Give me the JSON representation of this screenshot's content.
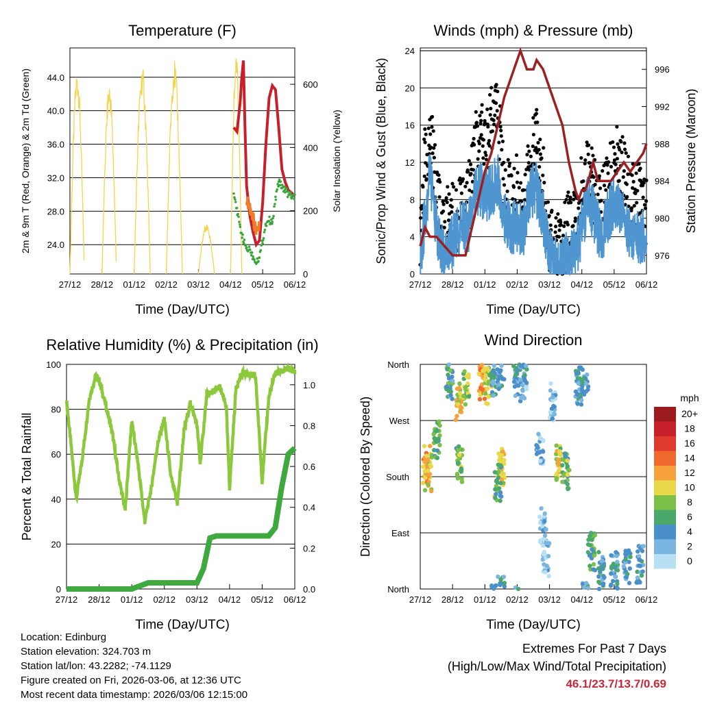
{
  "time_labels": [
    "27/12",
    "28/12",
    "01/12",
    "02/12",
    "03/12",
    "04/12",
    "05/12",
    "06/12"
  ],
  "xlabel": "Time (Day/UTC)",
  "chart_data": [
    {
      "type": "line",
      "id": "temperature",
      "title": "Temperature (F)",
      "xlabel": "Time (Day/UTC)",
      "ylabel": "2m & 9m T (Red, Orange) & 2m Td (Green)",
      "ylabel_right": "Solar Insolation (Yellow)",
      "ylim": [
        20.5,
        47.5
      ],
      "yticks": [
        "24.0",
        "28.0",
        "32.0",
        "36.0",
        "40.0",
        "44.0"
      ],
      "ylim_right": [
        0,
        715
      ],
      "yticks_right": [
        "0",
        "200",
        "400",
        "600"
      ],
      "series": [
        {
          "name": "2m T",
          "color": "#c8202a",
          "x": [
            5.1,
            5.2,
            5.3,
            5.35,
            5.4,
            5.45,
            5.5,
            5.6,
            5.7,
            5.8,
            5.9,
            6.0,
            6.1,
            6.2,
            6.3,
            6.4,
            6.5,
            6.6,
            6.7,
            6.8,
            6.9,
            7.0
          ],
          "values": [
            38.0,
            37.5,
            41.0,
            44.0,
            46.0,
            38.0,
            31.0,
            27.5,
            25.5,
            24.0,
            24.5,
            29.0,
            36.0,
            41.5,
            43.0,
            42.5,
            38.0,
            33.0,
            31.5,
            30.5,
            30.2,
            29.8
          ]
        },
        {
          "name": "9m T",
          "color": "#f07c2a",
          "x": [
            5.5,
            5.6,
            5.7,
            5.8,
            5.9
          ],
          "values": [
            29.0,
            27.5,
            26.5,
            24.5,
            25.5
          ]
        },
        {
          "name": "2m Td",
          "color": "#3ca43c",
          "x": [
            5.1,
            5.2,
            5.3,
            5.4,
            5.5,
            5.6,
            5.7,
            5.8,
            5.9,
            6.0,
            6.1,
            6.2,
            6.3,
            6.4,
            6.5,
            6.6,
            6.7,
            6.8,
            6.9,
            7.0
          ],
          "values": [
            30.5,
            28.0,
            26.0,
            24.5,
            23.5,
            23.5,
            22.5,
            22.0,
            22.5,
            24.5,
            26.5,
            27.0,
            26.5,
            29.5,
            31.5,
            31.0,
            30.5,
            30.0,
            29.8,
            29.6
          ]
        }
      ],
      "solar": {
        "name": "Solar Insolation",
        "color": "#f2d44e",
        "days": [
          {
            "start": 0.0,
            "peak": 0.25,
            "end": 0.45,
            "value": 650
          },
          {
            "start": 1.0,
            "peak": 1.2,
            "end": 1.45,
            "value": 610
          },
          {
            "start": 2.0,
            "peak": 2.25,
            "end": 2.5,
            "value": 660
          },
          {
            "start": 3.0,
            "peak": 3.25,
            "end": 3.5,
            "value": 680
          },
          {
            "start": 4.0,
            "peak": 4.25,
            "end": 4.5,
            "value": 160
          },
          {
            "start": 5.0,
            "peak": 5.05,
            "end": 5.35,
            "value": 715
          }
        ]
      }
    },
    {
      "type": "line",
      "id": "winds",
      "title": "Winds (mph) & Pressure (mb)",
      "xlabel": "Time (Day/UTC)",
      "ylabel": "Sonic/Prop Wind & Gust (Blue, Black)",
      "ylabel_right": "Station Pressure (Maroon)",
      "ylim": [
        0,
        24.3
      ],
      "yticks": [
        "0",
        "4",
        "8",
        "12",
        "16",
        "20",
        "24"
      ],
      "ylim_right": [
        974.0,
        998.3
      ],
      "yticks_right": [
        "976",
        "980",
        "984",
        "988",
        "992",
        "996"
      ],
      "series": [
        {
          "name": "Sonic/Prop Wind",
          "color": "#4f95d0",
          "x": [
            0,
            0.15,
            0.3,
            0.5,
            0.7,
            0.9,
            1.1,
            1.3,
            1.5,
            1.7,
            1.9,
            2.0,
            2.2,
            2.4,
            2.6,
            2.8,
            3.0,
            3.2,
            3.4,
            3.6,
            3.8,
            4.0,
            4.2,
            4.4,
            4.6,
            4.8,
            5.0,
            5.2,
            5.4,
            5.6,
            5.8,
            6.0,
            6.2,
            6.4,
            6.6,
            6.8,
            7.0
          ],
          "values": [
            2,
            6,
            11,
            5,
            2,
            3,
            4,
            5,
            5,
            9,
            9,
            8,
            9,
            10,
            6,
            5,
            5,
            5,
            9,
            9,
            6,
            2,
            1,
            1,
            2,
            2,
            5,
            8,
            6,
            4,
            6,
            8,
            7,
            5,
            4,
            4,
            4
          ]
        },
        {
          "name": "Gust",
          "color": "#000000",
          "x": [
            0,
            0.15,
            0.3,
            0.5,
            0.7,
            0.9,
            1.1,
            1.3,
            1.5,
            1.7,
            1.9,
            2.0,
            2.2,
            2.4,
            2.6,
            2.8,
            3.0,
            3.2,
            3.4,
            3.6,
            3.8,
            4.0,
            4.2,
            4.4,
            4.6,
            4.8,
            5.0,
            5.2,
            5.4,
            5.6,
            5.8,
            6.0,
            6.2,
            6.4,
            6.6,
            6.8,
            7.0
          ],
          "values": [
            5,
            12,
            16,
            9,
            4,
            6,
            6,
            7,
            8,
            14,
            15,
            13,
            17,
            17,
            9,
            8,
            9,
            8,
            13,
            14,
            10,
            4,
            3,
            3,
            5,
            5,
            9,
            12,
            9,
            7,
            9,
            12,
            12,
            9,
            8,
            8,
            7
          ]
        },
        {
          "name": "Station Pressure",
          "color": "#9c1f22",
          "x": [
            0,
            0.15,
            0.3,
            0.5,
            0.75,
            1.0,
            1.2,
            1.4,
            1.6,
            1.8,
            2.0,
            2.2,
            2.4,
            2.6,
            2.8,
            3.0,
            3.1,
            3.2,
            3.3,
            3.4,
            3.5,
            3.6,
            3.8,
            4.0,
            4.2,
            4.4,
            4.6,
            4.8,
            4.9,
            5.0,
            5.1,
            5.2,
            5.35,
            5.5,
            5.7,
            5.9,
            6.1,
            6.3,
            6.5,
            6.7,
            6.9,
            7.0
          ],
          "values": [
            977,
            979,
            978,
            978,
            977,
            976,
            976,
            976,
            979,
            982,
            985,
            987,
            990,
            993,
            995,
            997,
            998,
            997,
            996,
            996,
            996,
            997,
            996,
            994,
            992,
            990,
            986,
            983,
            982,
            983,
            983,
            984,
            986,
            984,
            984,
            984,
            985,
            986,
            985,
            986,
            987,
            988
          ]
        }
      ]
    },
    {
      "type": "line",
      "id": "humidity",
      "title": "Relative Humidity (%) & Precipitation (in)",
      "xlabel": "Time (Day/UTC)",
      "ylabel": "Percent & Total Rainfall",
      "ylim": [
        0,
        100
      ],
      "yticks": [
        "0",
        "20",
        "40",
        "60",
        "80",
        "100"
      ],
      "ylim_right": [
        0,
        1.1
      ],
      "yticks_right": [
        "0.0",
        "0.2",
        "0.4",
        "0.6",
        "0.8",
        "1.0"
      ],
      "series": [
        {
          "name": "Relative Humidity",
          "color": "#8cc83c",
          "x": [
            0,
            0.1,
            0.3,
            0.5,
            0.7,
            0.9,
            1.0,
            1.2,
            1.4,
            1.6,
            1.8,
            2.0,
            2.2,
            2.4,
            2.6,
            2.8,
            3.0,
            3.2,
            3.4,
            3.6,
            3.8,
            4.0,
            4.1,
            4.3,
            4.5,
            4.7,
            4.9,
            5.0,
            5.2,
            5.4,
            5.6,
            5.8,
            6.0,
            6.2,
            6.4,
            6.6,
            6.8,
            7.0
          ],
          "values": [
            84,
            70,
            40,
            60,
            85,
            95,
            93,
            82,
            70,
            50,
            35,
            75,
            55,
            30,
            45,
            65,
            76,
            50,
            38,
            70,
            83,
            73,
            56,
            86,
            88,
            90,
            81,
            45,
            90,
            96,
            96,
            94,
            48,
            85,
            96,
            97,
            98,
            97
          ]
        },
        {
          "name": "Total Precipitation",
          "color": "#3fa83f",
          "x": [
            0,
            1.0,
            2.0,
            2.5,
            3.0,
            3.5,
            4.0,
            4.2,
            4.4,
            4.6,
            5.0,
            6.0,
            6.2,
            6.4,
            6.6,
            6.8,
            7.0
          ],
          "values": [
            0.0,
            0.0,
            0.0,
            0.03,
            0.03,
            0.03,
            0.03,
            0.1,
            0.25,
            0.26,
            0.26,
            0.26,
            0.26,
            0.3,
            0.5,
            0.66,
            0.69
          ]
        }
      ]
    },
    {
      "type": "scatter",
      "id": "wind_direction",
      "title": "Wind Direction",
      "xlabel": "Time (Day/UTC)",
      "ylabel": "Direction (Colored By Speed)",
      "ylim": [
        0,
        360
      ],
      "yticks": [
        "North",
        "East",
        "South",
        "West",
        "North"
      ],
      "colorbar": {
        "unit": "mph",
        "labels": [
          "20+",
          "18",
          "16",
          "14",
          "12",
          "10",
          "8",
          "6",
          "4",
          "2",
          "0"
        ],
        "colors": [
          "#9b1b1f",
          "#c8202a",
          "#e03a2e",
          "#f06a30",
          "#f5a23c",
          "#e8d84a",
          "#7cc04a",
          "#4aa86a",
          "#4a8fc8",
          "#7ab6e0",
          "#b8e0f4"
        ]
      },
      "clusters": [
        {
          "x": 0.2,
          "dir": 200,
          "speed": 12
        },
        {
          "x": 0.25,
          "dir": 185,
          "speed": 10
        },
        {
          "x": 0.5,
          "dir": 240,
          "speed": 6
        },
        {
          "x": 0.9,
          "dir": 330,
          "speed": 5
        },
        {
          "x": 1.2,
          "dir": 300,
          "speed": 10
        },
        {
          "x": 1.4,
          "dir": 320,
          "speed": 8
        },
        {
          "x": 1.2,
          "dir": 200,
          "speed": 7
        },
        {
          "x": 1.9,
          "dir": 330,
          "speed": 12
        },
        {
          "x": 2.1,
          "dir": 325,
          "speed": 9
        },
        {
          "x": 2.3,
          "dir": 340,
          "speed": 4
        },
        {
          "x": 2.5,
          "dir": 350,
          "speed": 3
        },
        {
          "x": 2.5,
          "dir": 195,
          "speed": 10
        },
        {
          "x": 2.4,
          "dir": 170,
          "speed": 7
        },
        {
          "x": 3.0,
          "dir": 335,
          "speed": 4
        },
        {
          "x": 3.2,
          "dir": 330,
          "speed": 3
        },
        {
          "x": 3.7,
          "dir": 230,
          "speed": 2
        },
        {
          "x": 3.8,
          "dir": 100,
          "speed": 1
        },
        {
          "x": 3.9,
          "dir": 50,
          "speed": 1
        },
        {
          "x": 4.1,
          "dir": 300,
          "speed": 2
        },
        {
          "x": 4.3,
          "dir": 200,
          "speed": 9
        },
        {
          "x": 4.5,
          "dir": 190,
          "speed": 7
        },
        {
          "x": 4.9,
          "dir": 325,
          "speed": 4
        },
        {
          "x": 5.1,
          "dir": 340,
          "speed": 4
        },
        {
          "x": 5.3,
          "dir": 60,
          "speed": 6
        },
        {
          "x": 5.6,
          "dir": 30,
          "speed": 5
        },
        {
          "x": 6.0,
          "dir": 30,
          "speed": 4
        },
        {
          "x": 6.4,
          "dir": 35,
          "speed": 4
        },
        {
          "x": 6.8,
          "dir": 40,
          "speed": 4
        }
      ]
    }
  ],
  "station": {
    "location": "Location: Edinburg",
    "elevation": "Station elevation: 324.703 m",
    "latlon": "Station lat/lon: 43.2282; -74.1129",
    "created": "Figure created on Fri, 2026-03-06, at 12:36 UTC",
    "recent": "Most recent data timestamp: 2026/03/06 12:15:00"
  },
  "extremes": {
    "heading": "Extremes For Past 7 Days",
    "subheading": "(High/Low/Max Wind/Total Precipitation)",
    "values": "46.1/23.7/13.7/0.69"
  }
}
